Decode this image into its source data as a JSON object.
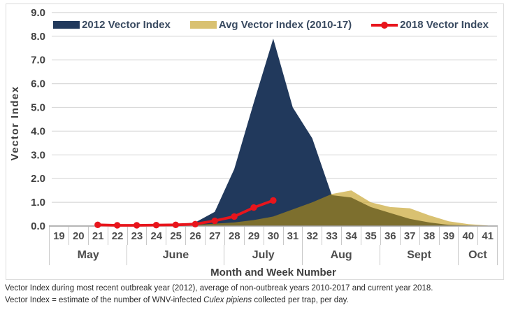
{
  "legend": {
    "items": [
      {
        "label": "2012 Vector Index",
        "color": "#21395c",
        "swatch": "area"
      },
      {
        "label": "Avg Vector Index (2010-17)",
        "color": "#d9c171",
        "swatch": "area"
      },
      {
        "label": "2018 Vector Index",
        "color": "#e8151c",
        "swatch": "line-marker"
      }
    ]
  },
  "chart_data": {
    "type": "area",
    "title": "",
    "xlabel": "Month and Week Number",
    "ylabel": "Vector Index",
    "ylim": [
      0,
      9
    ],
    "ytick_step": 1,
    "yticks": [
      "0.0",
      "1.0",
      "2.0",
      "3.0",
      "4.0",
      "5.0",
      "6.0",
      "7.0",
      "8.0",
      "9.0"
    ],
    "grid": true,
    "grid_color": "#d9d9d9",
    "baseline_color": "#9e9e9e",
    "legend_position": "top",
    "weeks": [
      19,
      20,
      21,
      22,
      23,
      24,
      25,
      26,
      27,
      28,
      29,
      30,
      31,
      32,
      33,
      34,
      35,
      36,
      37,
      38,
      39,
      40,
      41
    ],
    "week_labels": [
      "19",
      "20",
      "21",
      "22",
      "23",
      "24",
      "25",
      "26",
      "27",
      "28",
      "29",
      "30",
      "31",
      "32",
      "33",
      "34",
      "35",
      "36",
      "37",
      "38",
      "39",
      "40",
      "41"
    ],
    "months": [
      {
        "label": "May",
        "weeks": 4
      },
      {
        "label": "June",
        "weeks": 5
      },
      {
        "label": "July",
        "weeks": 4
      },
      {
        "label": "Aug",
        "weeks": 4
      },
      {
        "label": "Sept",
        "weeks": 4
      },
      {
        "label": "Oct",
        "weeks": 2
      }
    ],
    "series": [
      {
        "name": "2012 Vector Index",
        "type": "area",
        "color": "#21395c",
        "values": [
          0,
          0,
          0,
          0,
          0,
          0.02,
          0.05,
          0.15,
          0.6,
          2.4,
          5.2,
          7.9,
          5.0,
          3.7,
          1.3,
          1.2,
          0.8,
          0.55,
          0.3,
          0.15,
          0.05,
          0.02,
          0
        ]
      },
      {
        "name": "Avg Vector Index (2010-17)",
        "type": "area",
        "color": "#d9c171",
        "overlap_color": "#7d7429",
        "values": [
          0,
          0,
          0,
          0,
          0,
          0.01,
          0.02,
          0.05,
          0.1,
          0.15,
          0.25,
          0.4,
          0.7,
          1.0,
          1.35,
          1.5,
          1.0,
          0.8,
          0.75,
          0.45,
          0.2,
          0.08,
          0.02
        ]
      },
      {
        "name": "2018 Vector Index",
        "type": "line",
        "color": "#e8151c",
        "x": [
          21,
          22,
          23,
          24,
          25,
          26,
          27,
          28,
          29,
          30
        ],
        "values": [
          0.05,
          0.03,
          0.03,
          0.04,
          0.05,
          0.08,
          0.22,
          0.4,
          0.78,
          1.08
        ]
      }
    ]
  },
  "footnotes": {
    "line1": "Vector Index during most recent outbreak year (2012), average of non-outbreak years 2010-2017 and current year 2018.",
    "line2_prefix": "Vector Index = estimate of the number of WNV-infected ",
    "line2_italic": "Culex pipiens",
    "line2_suffix": " collected per trap, per day."
  }
}
